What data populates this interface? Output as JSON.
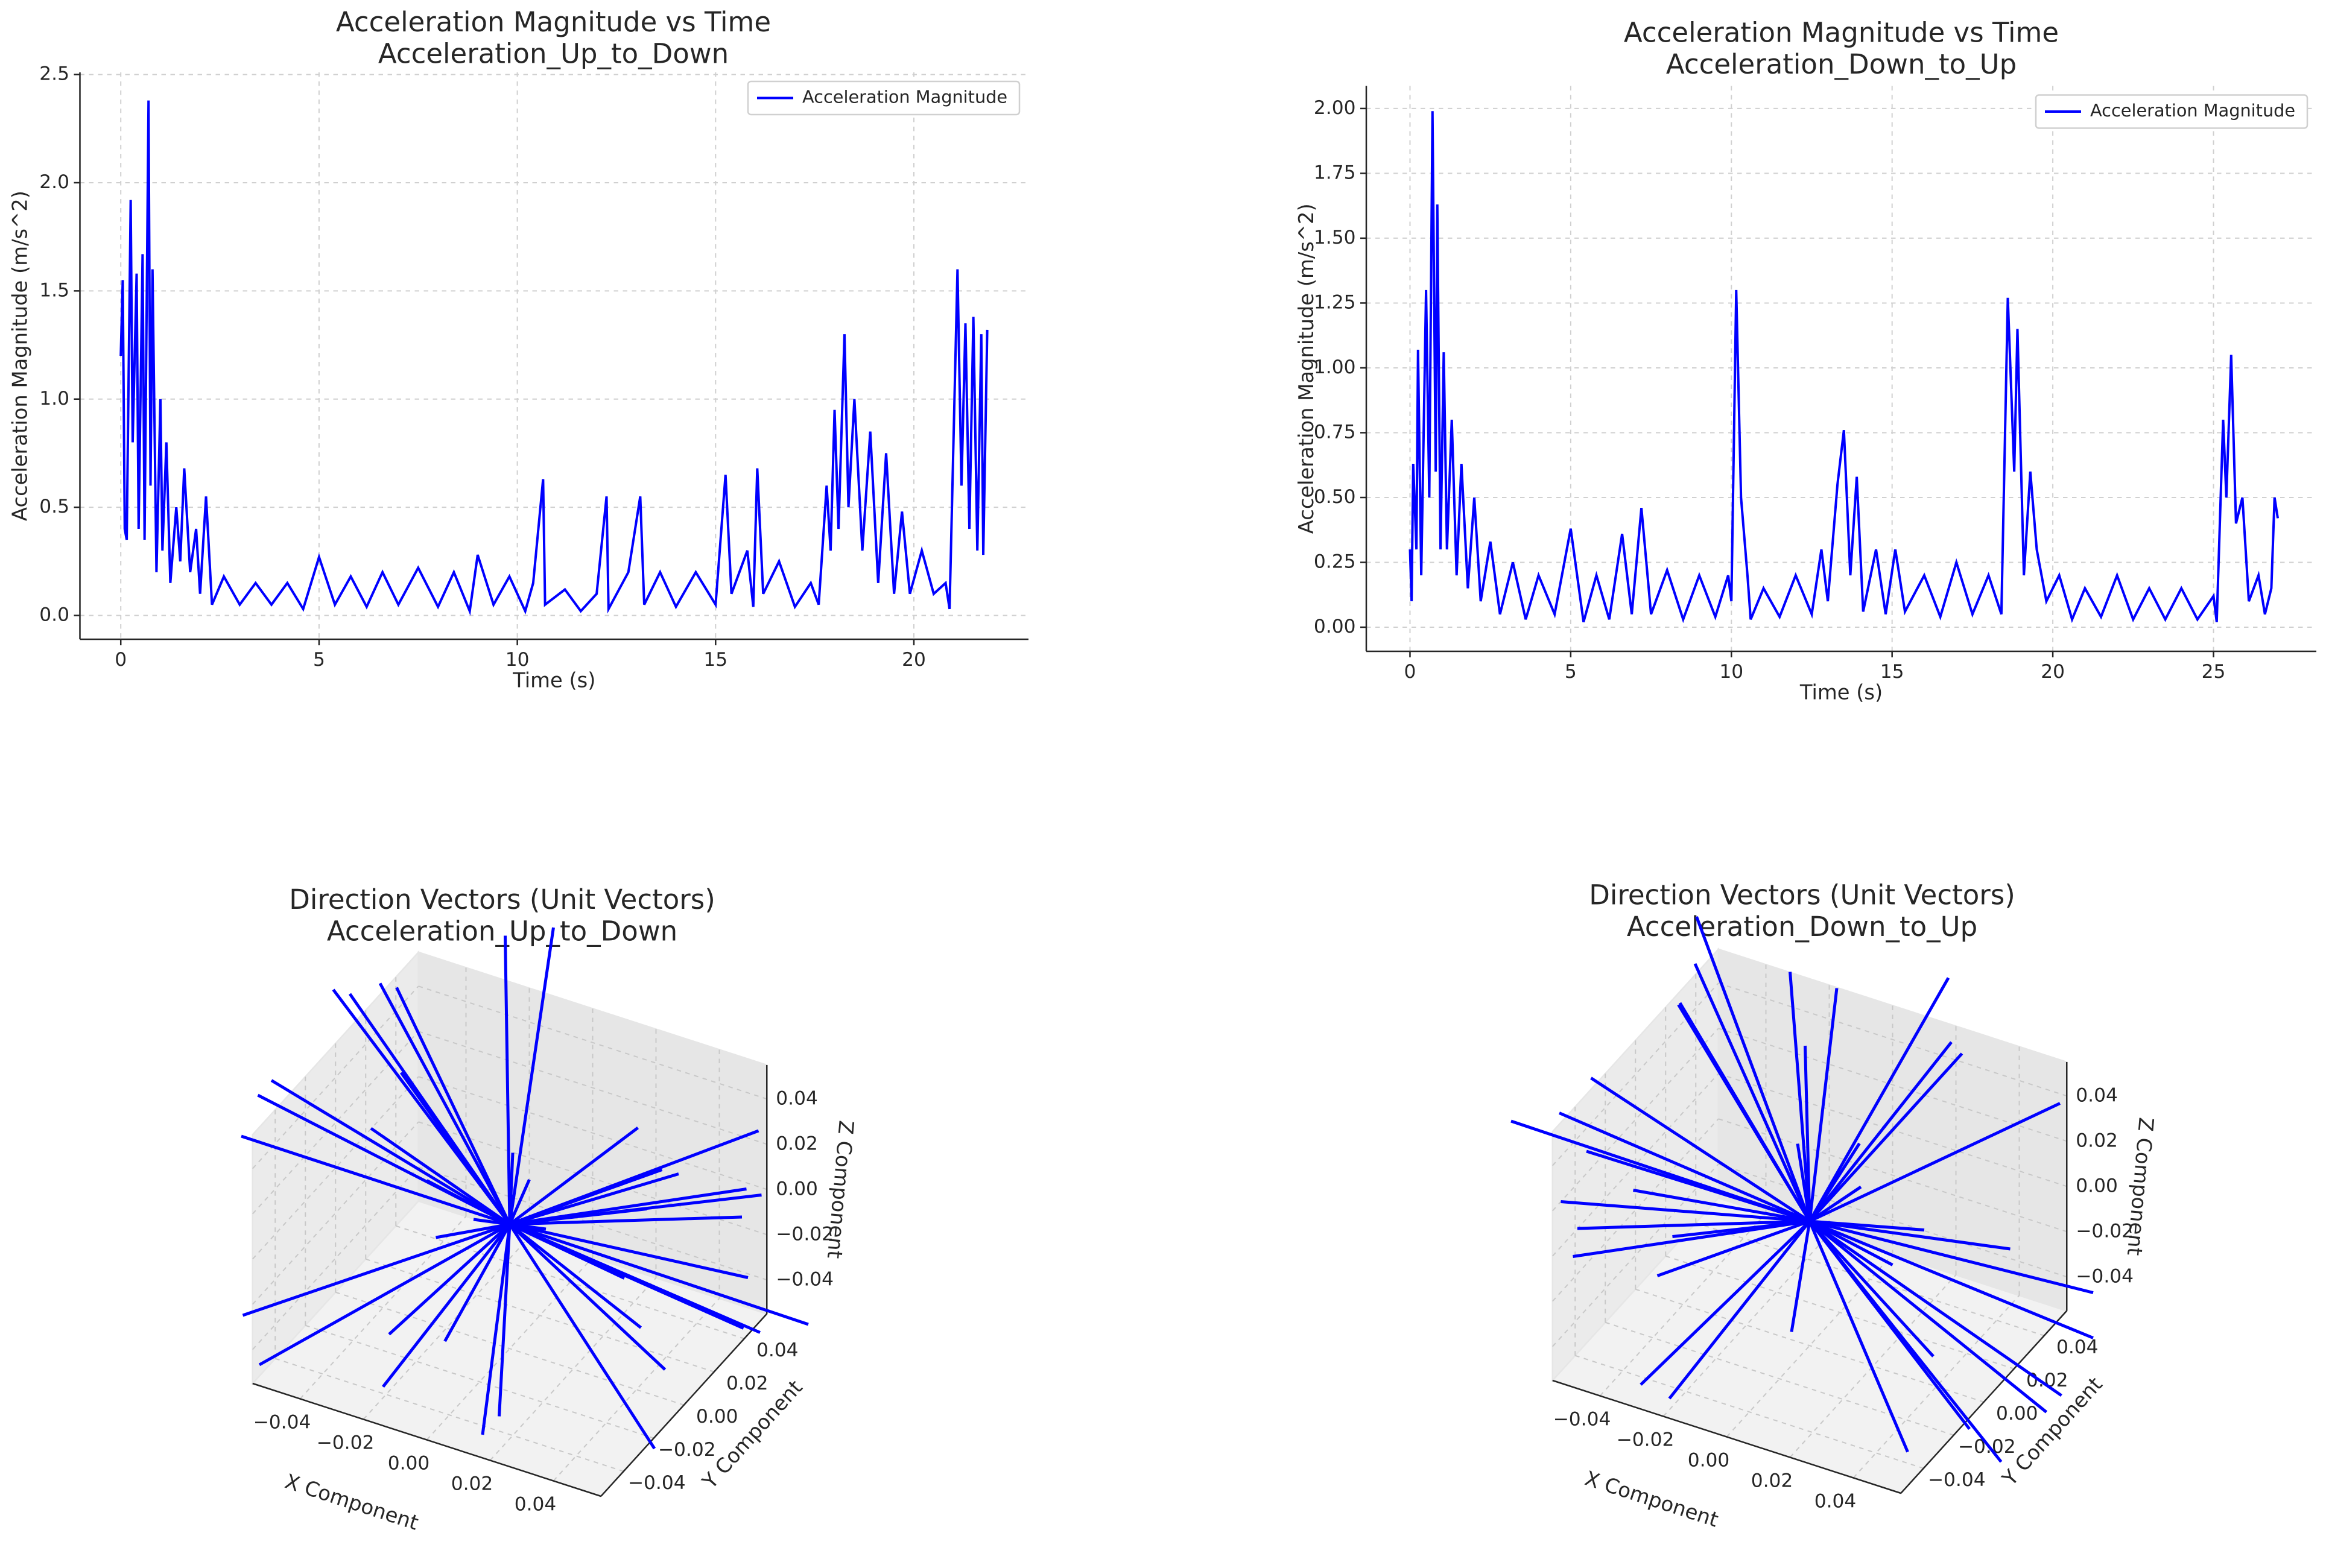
{
  "chart_data": [
    {
      "type": "line",
      "title": "Acceleration Magnitude vs Time",
      "subtitle": "Acceleration_Up_to_Down",
      "x_label": "Time (s)",
      "y_label": "Acceleration Magnitude (m/s^2)",
      "xlim": [
        -1.03,
        22.89
      ],
      "ylim": [
        -0.11,
        2.51
      ],
      "xticks": [
        0,
        5,
        10,
        15,
        20
      ],
      "yticks": [
        {
          "value": 0,
          "label": "0.0"
        },
        0.5,
        {
          "value": 1,
          "label": "1.0"
        },
        1.5,
        {
          "value": 2,
          "label": "2.0"
        },
        2.5
      ],
      "grid": true,
      "legend": "upper right",
      "x": [
        0,
        0.05,
        0.1,
        0.15,
        0.25,
        0.3,
        0.4,
        0.45,
        0.55,
        0.6,
        0.7,
        0.75,
        0.8,
        0.9,
        1.0,
        1.05,
        1.15,
        1.25,
        1.4,
        1.5,
        1.6,
        1.75,
        1.9,
        2.0,
        2.15,
        2.3,
        2.6,
        3.0,
        3.4,
        3.8,
        4.2,
        4.6,
        5.0,
        5.4,
        5.8,
        6.2,
        6.6,
        7.0,
        7.5,
        8.0,
        8.4,
        8.8,
        9.0,
        9.4,
        9.8,
        10.2,
        10.4,
        10.65,
        10.7,
        11.2,
        11.6,
        12.0,
        12.25,
        12.3,
        12.8,
        13.1,
        13.2,
        13.6,
        14.0,
        14.5,
        15.0,
        15.25,
        15.4,
        15.8,
        15.95,
        16.05,
        16.2,
        16.6,
        17.0,
        17.4,
        17.6,
        17.8,
        17.9,
        18.0,
        18.1,
        18.25,
        18.35,
        18.5,
        18.7,
        18.9,
        19.1,
        19.3,
        19.5,
        19.7,
        19.9,
        20.2,
        20.5,
        20.8,
        20.9,
        21.1,
        21.2,
        21.3,
        21.4,
        21.5,
        21.6,
        21.7,
        21.75,
        21.85
      ],
      "series": [
        {
          "name": "Acceleration Magnitude",
          "color": "#0000ff",
          "values": [
            1.2,
            1.55,
            0.4,
            0.35,
            1.92,
            0.8,
            1.58,
            0.4,
            1.67,
            0.35,
            2.38,
            0.6,
            1.6,
            0.2,
            1.0,
            0.3,
            0.8,
            0.15,
            0.5,
            0.25,
            0.68,
            0.2,
            0.4,
            0.1,
            0.55,
            0.05,
            0.18,
            0.05,
            0.15,
            0.05,
            0.15,
            0.03,
            0.27,
            0.05,
            0.18,
            0.04,
            0.2,
            0.05,
            0.22,
            0.04,
            0.2,
            0.02,
            0.28,
            0.05,
            0.18,
            0.02,
            0.15,
            0.63,
            0.05,
            0.12,
            0.02,
            0.1,
            0.55,
            0.03,
            0.2,
            0.55,
            0.05,
            0.2,
            0.04,
            0.2,
            0.05,
            0.65,
            0.1,
            0.3,
            0.04,
            0.68,
            0.1,
            0.25,
            0.04,
            0.15,
            0.05,
            0.6,
            0.3,
            0.95,
            0.4,
            1.3,
            0.5,
            1.0,
            0.3,
            0.85,
            0.15,
            0.75,
            0.1,
            0.48,
            0.1,
            0.3,
            0.1,
            0.15,
            0.03,
            1.6,
            0.6,
            1.35,
            0.4,
            1.38,
            0.3,
            1.3,
            0.28,
            1.32
          ]
        }
      ]
    },
    {
      "type": "line",
      "title": "Acceleration Magnitude vs Time",
      "subtitle": "Acceleration_Down_to_Up",
      "x_label": "Time (s)",
      "y_label": "Acceleration Magnitude (m/s^2)",
      "xlim": [
        -1.36,
        28.2
      ],
      "ylim": [
        -0.093,
        2.087
      ],
      "xticks": [
        0,
        5,
        10,
        15,
        20,
        25
      ],
      "yticks": [
        {
          "value": 0,
          "label": "0.00"
        },
        0.25,
        {
          "value": 0.5,
          "label": "0.50"
        },
        0.75,
        {
          "value": 1,
          "label": "1.00"
        },
        1.25,
        {
          "value": 1.5,
          "label": "1.50"
        },
        1.75,
        {
          "value": 2,
          "label": "2.00"
        }
      ],
      "grid": true,
      "legend": "upper right",
      "x": [
        0,
        0.05,
        0.1,
        0.2,
        0.25,
        0.35,
        0.5,
        0.6,
        0.7,
        0.8,
        0.85,
        0.95,
        1.05,
        1.15,
        1.3,
        1.45,
        1.6,
        1.8,
        2.0,
        2.2,
        2.5,
        2.8,
        3.2,
        3.6,
        4.0,
        4.5,
        5.0,
        5.4,
        5.8,
        6.2,
        6.6,
        6.9,
        7.2,
        7.5,
        8.0,
        8.5,
        9.0,
        9.5,
        9.9,
        10.0,
        10.15,
        10.3,
        10.5,
        10.6,
        11.0,
        11.5,
        12.0,
        12.5,
        12.8,
        13.0,
        13.3,
        13.5,
        13.7,
        13.9,
        14.1,
        14.5,
        14.8,
        15.1,
        15.4,
        16.0,
        16.5,
        17.0,
        17.5,
        18.0,
        18.4,
        18.6,
        18.8,
        18.9,
        19.1,
        19.3,
        19.5,
        19.8,
        20.2,
        20.6,
        21.0,
        21.5,
        22.0,
        22.5,
        23.0,
        23.5,
        24.0,
        24.5,
        25.0,
        25.1,
        25.3,
        25.4,
        25.55,
        25.7,
        25.9,
        26.1,
        26.4,
        26.6,
        26.8,
        26.9,
        27.0
      ],
      "series": [
        {
          "name": "Acceleration Magnitude",
          "color": "#0000ff",
          "values": [
            0.3,
            0.1,
            0.63,
            0.3,
            1.07,
            0.2,
            1.3,
            0.5,
            1.99,
            0.6,
            1.63,
            0.3,
            1.06,
            0.3,
            0.8,
            0.2,
            0.63,
            0.15,
            0.5,
            0.1,
            0.33,
            0.05,
            0.25,
            0.03,
            0.2,
            0.05,
            0.38,
            0.02,
            0.2,
            0.03,
            0.36,
            0.05,
            0.46,
            0.05,
            0.22,
            0.03,
            0.2,
            0.04,
            0.2,
            0.1,
            1.3,
            0.5,
            0.2,
            0.03,
            0.15,
            0.04,
            0.2,
            0.05,
            0.3,
            0.1,
            0.55,
            0.76,
            0.2,
            0.58,
            0.06,
            0.3,
            0.05,
            0.3,
            0.06,
            0.2,
            0.04,
            0.25,
            0.05,
            0.2,
            0.05,
            1.27,
            0.6,
            1.15,
            0.2,
            0.6,
            0.3,
            0.1,
            0.2,
            0.03,
            0.15,
            0.04,
            0.2,
            0.03,
            0.15,
            0.03,
            0.15,
            0.03,
            0.12,
            0.02,
            0.8,
            0.5,
            1.05,
            0.4,
            0.5,
            0.1,
            0.2,
            0.05,
            0.15,
            0.5,
            0.42
          ]
        }
      ]
    },
    {
      "type": "quiver3d",
      "title": "Direction Vectors (Unit Vectors)",
      "subtitle": "Acceleration_Up_to_Down",
      "x_label": "X Component",
      "y_label": "Y Component",
      "z_label": "Z Component",
      "color": "#0000ff",
      "xlim": [
        -0.055,
        0.055
      ],
      "ylim": [
        -0.055,
        0.055
      ],
      "zlim": [
        -0.055,
        0.055
      ],
      "xticks": [
        {
          "value": -0.04,
          "label": "−0.04"
        },
        {
          "value": -0.02,
          "label": "−0.02"
        },
        {
          "value": 0,
          "label": "0.00"
        },
        0.02,
        0.04
      ],
      "yticks": [
        {
          "value": -0.04,
          "label": "−0.04"
        },
        {
          "value": -0.02,
          "label": "−0.02"
        },
        {
          "value": 0,
          "label": "0.00"
        },
        0.02,
        0.04
      ],
      "zticks": [
        {
          "value": -0.04,
          "label": "−0.04"
        },
        {
          "value": -0.02,
          "label": "−0.02"
        },
        {
          "value": 0,
          "label": "0.00"
        },
        0.02,
        0.04
      ],
      "vectors": {
        "u": [
          0.07,
          -0.06,
          0.02,
          -0.08,
          0.05,
          0.01,
          -0.03,
          0.06,
          -0.07,
          0.04,
          0.08,
          -0.02,
          0.03,
          -0.05,
          0,
          0.06,
          -0.04,
          0.02,
          -0.07,
          0.05,
          0.01,
          -0.06,
          0.07,
          -0.01,
          0.03,
          -0.08,
          0.04,
          -0.03,
          0.06,
          -0.02,
          0.05,
          -0.05,
          0.02,
          0.07,
          -0.04,
          0.01,
          -0.06,
          0.03,
          0.08,
          -0.07
        ],
        "v": [
          0.02,
          0.04,
          -0.06,
          0.01,
          0.05,
          -0.07,
          0.06,
          -0.03,
          -0.02,
          0.07,
          -0.01,
          -0.05,
          0.04,
          0.03,
          -0.08,
          -0.05,
          0.06,
          0.07,
          0.03,
          -0.02,
          0.08,
          -0.04,
          0.01,
          0.05,
          -0.07,
          -0.01,
          -0.06,
          0.02,
          0.04,
          -0.03,
          0.06,
          0.05,
          -0.04,
          -0.06,
          0,
          0.07,
          0.02,
          -0.05,
          0.03,
          -0.03
        ],
        "w": [
          0.03,
          0.05,
          -0.04,
          0.02,
          -0.06,
          0.05,
          0.07,
          -0.05,
          0.04,
          -0.03,
          0.02,
          0.07,
          -0.08,
          0.06,
          0.01,
          0.04,
          -0.06,
          -0.02,
          0.05,
          0.08,
          -0.03,
          -0.06,
          0.04,
          0.09,
          -0.02,
          0.01,
          0.06,
          -0.08,
          -0.05,
          0.08,
          0.02,
          -0.04,
          0.07,
          0.03,
          -0.09,
          -0.04,
          0.06,
          0.07,
          -0.03,
          -0.05
        ]
      }
    },
    {
      "type": "quiver3d",
      "title": "Direction Vectors (Unit Vectors)",
      "subtitle": "Acceleration_Down_to_Up",
      "x_label": "X Component",
      "y_label": "Y Component",
      "z_label": "Z Component",
      "color": "#0000ff",
      "xlim": [
        -0.055,
        0.055
      ],
      "ylim": [
        -0.055,
        0.055
      ],
      "zlim": [
        -0.055,
        0.055
      ],
      "xticks": [
        {
          "value": -0.04,
          "label": "−0.04"
        },
        {
          "value": -0.02,
          "label": "−0.02"
        },
        {
          "value": 0,
          "label": "0.00"
        },
        0.02,
        0.04
      ],
      "yticks": [
        {
          "value": -0.04,
          "label": "−0.04"
        },
        {
          "value": -0.02,
          "label": "−0.02"
        },
        {
          "value": 0,
          "label": "0.00"
        },
        0.02,
        0.04
      ],
      "zticks": [
        {
          "value": -0.04,
          "label": "−0.04"
        },
        {
          "value": -0.02,
          "label": "−0.02"
        },
        {
          "value": 0,
          "label": "0.00"
        },
        0.02,
        0.04
      ],
      "vectors": {
        "u": [
          -0.07,
          0.06,
          -0.02,
          0.08,
          -0.05,
          0.03,
          0.04,
          -0.06,
          0.07,
          -0.04,
          -0.08,
          0.02,
          -0.03,
          0.05,
          0.01,
          -0.06,
          0.04,
          -0.02,
          0.07,
          -0.05,
          -0.01,
          0.06,
          -0.07,
          0.02,
          -0.03,
          0.08,
          -0.04,
          0.03,
          -0.06,
          0.02,
          -0.05,
          0.05,
          -0.02,
          -0.07,
          0.04,
          -0.01,
          0.06,
          -0.03,
          -0.08,
          0.07
        ],
        "v": [
          0.03,
          -0.05,
          0.06,
          0.02,
          -0.04,
          0.07,
          -0.06,
          0.04,
          0.01,
          -0.07,
          0.02,
          0.05,
          -0.03,
          -0.04,
          0.08,
          0.05,
          -0.05,
          -0.07,
          -0.02,
          0.03,
          -0.08,
          0.04,
          -0.01,
          -0.05,
          0.06,
          0.02,
          0.07,
          -0.03,
          -0.04,
          0.04,
          -0.06,
          -0.05,
          0.03,
          0.06,
          0.01,
          -0.07,
          -0.02,
          0.05,
          -0.03,
          0.02
        ],
        "w": [
          -0.04,
          0.06,
          0.05,
          -0.03,
          0.07,
          -0.05,
          0.06,
          0.04,
          -0.06,
          0.03,
          -0.02,
          0.08,
          -0.07,
          -0.05,
          0.02,
          0.05,
          0.07,
          -0.03,
          -0.06,
          0.09,
          0.03,
          0.05,
          -0.04,
          0.08,
          0.02,
          -0.01,
          -0.07,
          0.07,
          0.05,
          -0.08,
          0.03,
          0.04,
          -0.08,
          0.02,
          0.09,
          0.04,
          -0.05,
          0.06,
          0.03,
          -0.06
        ]
      }
    }
  ]
}
